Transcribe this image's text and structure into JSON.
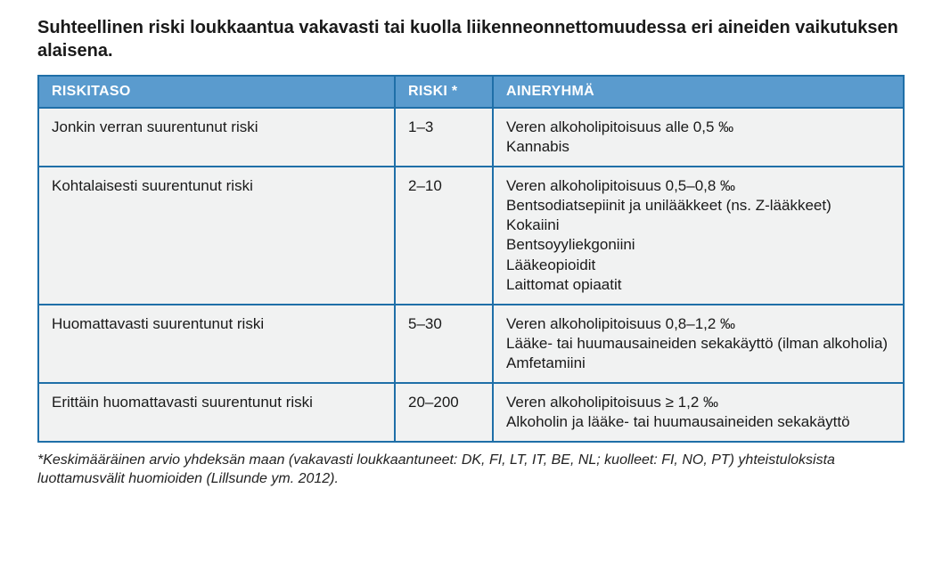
{
  "title": "Suhteellinen riski loukkaantua vakavasti tai kuolla liikenneonnettomuudessa eri aineiden vaikutuksen alaisena.",
  "table": {
    "headers": {
      "level": "RISKITASO",
      "risk": "RISKI *",
      "group": "AINERYHMÄ"
    },
    "header_bg": "#5a9bce",
    "header_text_color": "#ffffff",
    "border_color": "#1f6fa8",
    "row_bg": "#f1f2f2",
    "rows": [
      {
        "level": "Jonkin verran suurentunut riski",
        "risk": "1–3",
        "group": "Veren alkoholipitoisuus alle 0,5 ‰\nKannabis"
      },
      {
        "level": "Kohtalaisesti suurentunut riski",
        "risk": "2–10",
        "group": "Veren alkoholipitoisuus 0,5–0,8 ‰\nBentsodiatsepiinit ja unilääkkeet (ns. Z-lääkkeet)\nKokaiini\nBentsoyyliekgoniini\nLääkeopioidit\nLaittomat opiaatit"
      },
      {
        "level": "Huomattavasti suurentunut riski",
        "risk": "5–30",
        "group": "Veren alkoholipitoisuus 0,8–1,2 ‰\nLääke- tai huumausaineiden sekakäyttö (ilman alkoholia)\nAmfetamiini"
      },
      {
        "level": "Erittäin huomattavasti suurentunut riski",
        "risk": "20–200",
        "group": "Veren alkoholipitoisuus ≥ 1,2 ‰\nAlkoholin ja lääke- tai huumausaineiden sekakäyttö"
      }
    ]
  },
  "footnote": "*Keskimääräinen arvio yhdeksän maan (vakavasti loukkaantuneet: DK, FI, LT, IT, BE, NL; kuolleet: FI, NO, PT) yhteistuloksista luottamusvälit huomioiden (Lillsunde ym. 2012)."
}
